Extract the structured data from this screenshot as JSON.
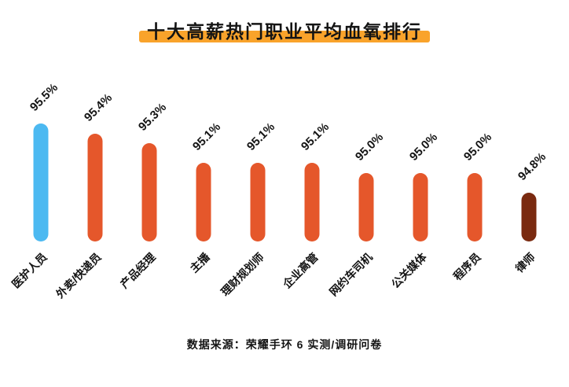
{
  "title": "十大高薪热门职业平均血氧排行",
  "source": "数据来源：荣耀手环 6 实测/调研问卷",
  "colors": {
    "title_highlight": "#F9A32B",
    "text": "#141414",
    "bar_blue": "#4CB9F1",
    "bar_orange": "#E5572B",
    "bar_dark": "#7A2A10"
  },
  "chart_data": {
    "type": "bar",
    "title": "十大高薪热门职业平均血氧排行",
    "categories": [
      "医护人员",
      "外卖/快递员",
      "产品经理",
      "主播",
      "理财规划师",
      "企业高管",
      "网约车司机",
      "公关媒体",
      "程序员",
      "律师"
    ],
    "values": [
      95.5,
      95.4,
      95.3,
      95.1,
      95.1,
      95.1,
      95.0,
      95.0,
      95.0,
      94.8
    ],
    "value_labels": [
      "95.5%",
      "95.4%",
      "95.3%",
      "95.1%",
      "95.1%",
      "95.1%",
      "95.0%",
      "95.0%",
      "95.0%",
      "94.8%"
    ],
    "bar_colors": [
      "#4CB9F1",
      "#E5572B",
      "#E5572B",
      "#E5572B",
      "#E5572B",
      "#E5572B",
      "#E5572B",
      "#E5572B",
      "#E5572B",
      "#7A2A10"
    ],
    "unit": "%",
    "ylim": [
      94.8,
      95.5
    ],
    "xlabel": "",
    "ylabel": "",
    "grid": false,
    "legend": false,
    "source_note": "数据来源：荣耀手环 6 实测/调研问卷"
  }
}
